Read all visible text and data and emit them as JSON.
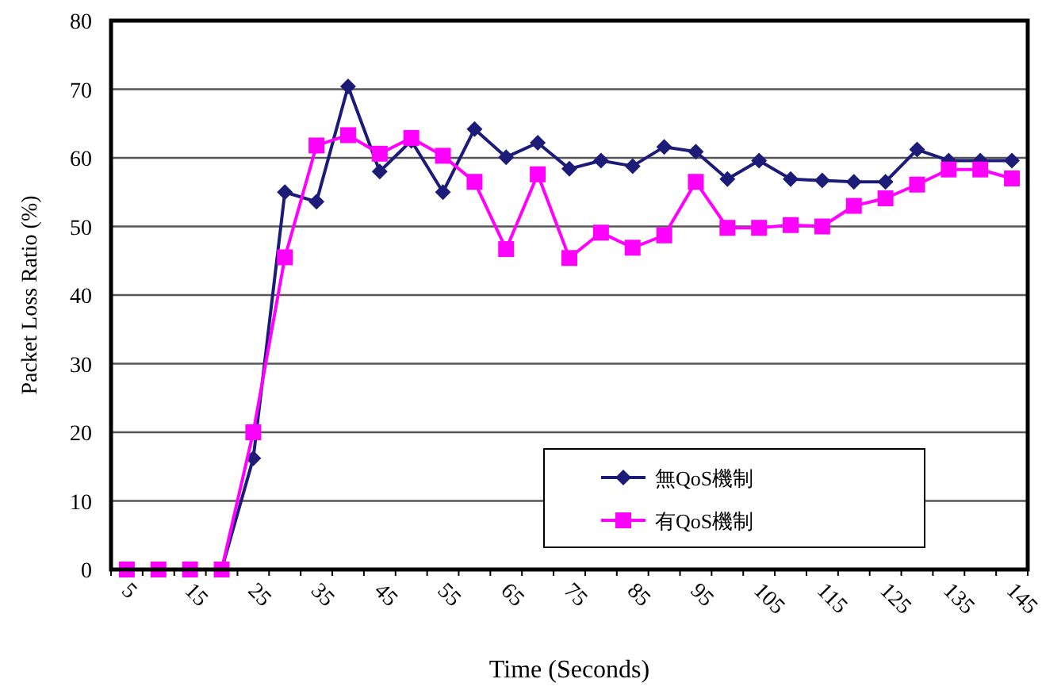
{
  "chart_data": {
    "type": "line",
    "categories": [
      "5",
      null,
      "15",
      null,
      "25",
      null,
      "35",
      null,
      "45",
      null,
      "55",
      null,
      "65",
      null,
      "75",
      null,
      "85",
      null,
      "95",
      null,
      "105",
      null,
      "115",
      null,
      "125",
      null,
      "135",
      null,
      "145"
    ],
    "series": [
      {
        "name": "無QoS機制",
        "color": "#1c1c78",
        "marker": "diamond",
        "values": [
          null,
          null,
          null,
          0,
          16.2,
          55,
          53.6,
          70.4,
          58,
          62.5,
          55,
          64.2,
          60.1,
          62.2,
          58.4,
          59.6,
          58.8,
          61.6,
          60.9,
          56.9,
          59.6,
          56.9,
          56.7,
          56.5,
          56.5,
          61.2,
          59.6,
          59.6,
          59.6
        ]
      },
      {
        "name": "有QoS機制",
        "color": "#ff00ff",
        "marker": "square",
        "values": [
          0,
          0,
          0,
          0,
          20,
          45.5,
          61.8,
          63.3,
          60.6,
          62.9,
          60.3,
          56.5,
          46.7,
          57.6,
          45.4,
          49.1,
          46.9,
          48.7,
          56.5,
          49.8,
          49.8,
          50.2,
          50,
          53,
          54.1,
          56.1,
          58.3,
          58.3,
          57
        ]
      }
    ],
    "xlabel": "Time (Seconds)",
    "ylabel": "Packet Loss Ratio (%)",
    "ylim": [
      0,
      80
    ],
    "yticks": [
      0,
      10,
      20,
      30,
      40,
      50,
      60,
      70,
      80
    ],
    "grid": "y",
    "legend": "bottom right",
    "line_style": "solid"
  }
}
